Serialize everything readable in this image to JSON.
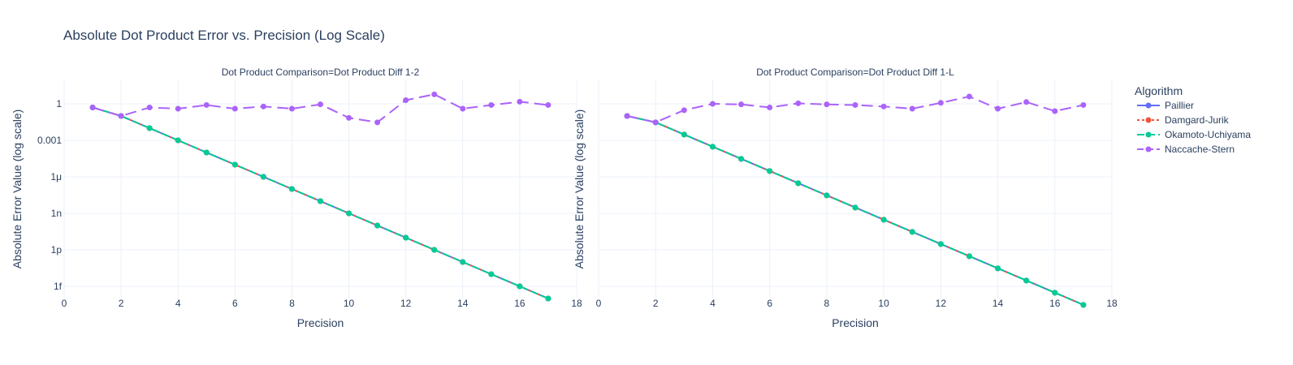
{
  "chart_data": {
    "type": "line",
    "title": "Absolute Dot Product Error vs. Precision (Log Scale)",
    "legend": {
      "title": "Algorithm",
      "placement": "right",
      "entries": [
        "Paillier",
        "Damgard-Jurik",
        "Okamoto-Uchiyama",
        "Naccache-Stern"
      ]
    },
    "colors": {
      "Paillier": "#636efa",
      "Damgard-Jurik": "#ef553b",
      "Okamoto-Uchiyama": "#00cc96",
      "Naccache-Stern": "#ab63fa"
    },
    "grid": true,
    "y_scale": "log",
    "xlim": [
      0,
      18
    ],
    "ylim": [
      1e-16,
      100.0
    ],
    "x_ticks": [
      0,
      2,
      4,
      6,
      8,
      10,
      12,
      14,
      16,
      18
    ],
    "y_ticks": [
      {
        "value": 1,
        "label": "1"
      },
      {
        "value": 0.001,
        "label": "0.001"
      },
      {
        "value": 1e-06,
        "label": "1μ"
      },
      {
        "value": 1e-09,
        "label": "1n"
      },
      {
        "value": 1e-12,
        "label": "1p"
      },
      {
        "value": 1e-15,
        "label": "1f"
      }
    ],
    "xlabel": "Precision",
    "ylabel": "Absolute Error Value (log scale)",
    "panels": [
      {
        "subtitle": "Dot Product Comparison=Dot Product Diff 1-2",
        "show_y_ticks": true,
        "series": [
          {
            "name": "Paillier",
            "x": [
              1,
              2,
              3,
              4,
              5,
              6,
              7,
              8,
              9,
              10,
              11,
              12,
              13,
              14,
              15,
              16,
              17
            ],
            "y": [
              0.5,
              0.1,
              0.01,
              0.001,
              0.0001,
              1e-05,
              1e-06,
              1e-07,
              1e-08,
              1e-09,
              1e-10,
              1e-11,
              1e-12,
              1e-13,
              1e-14,
              1e-15,
              1e-16
            ]
          },
          {
            "name": "Damgard-Jurik",
            "x": [
              1,
              2,
              3,
              4,
              5,
              6,
              7,
              8,
              9,
              10,
              11,
              12,
              13,
              14,
              15,
              16,
              17
            ],
            "y": [
              0.5,
              0.1,
              0.01,
              0.001,
              0.0001,
              1e-05,
              1e-06,
              1e-07,
              1e-08,
              1e-09,
              1e-10,
              1e-11,
              1e-12,
              1e-13,
              1e-14,
              1e-15,
              1e-16
            ]
          },
          {
            "name": "Okamoto-Uchiyama",
            "x": [
              1,
              2,
              3,
              4,
              5,
              6,
              7,
              8,
              9,
              10,
              11,
              12,
              13,
              14,
              15,
              16,
              17
            ],
            "y": [
              0.5,
              0.1,
              0.01,
              0.001,
              0.0001,
              1e-05,
              1e-06,
              1e-07,
              1e-08,
              1e-09,
              1e-10,
              1e-11,
              1e-12,
              1e-13,
              1e-14,
              1e-15,
              1e-16
            ]
          },
          {
            "name": "Naccache-Stern",
            "x": [
              1,
              2,
              3,
              4,
              5,
              6,
              7,
              8,
              9,
              10,
              11,
              12,
              13,
              14,
              15,
              16,
              17
            ],
            "y": [
              0.5,
              0.1,
              0.5,
              0.4,
              0.8,
              0.4,
              0.6,
              0.4,
              0.9,
              0.07,
              0.03,
              2,
              6,
              0.4,
              0.8,
              1.5,
              0.8
            ]
          }
        ]
      },
      {
        "subtitle": "Dot Product Comparison=Dot Product Diff 1-L",
        "show_y_ticks": false,
        "series": [
          {
            "name": "Paillier",
            "x": [
              1,
              2,
              3,
              4,
              5,
              6,
              7,
              8,
              9,
              10,
              11,
              12,
              13,
              14,
              15,
              16,
              17
            ],
            "y": [
              0.1,
              0.03,
              0.003,
              0.0003,
              3e-05,
              3e-06,
              3e-07,
              3e-08,
              3e-09,
              3e-10,
              3e-11,
              3e-12,
              3e-13,
              3e-14,
              3e-15,
              3e-16,
              3e-17
            ]
          },
          {
            "name": "Damgard-Jurik",
            "x": [
              1,
              2,
              3,
              4,
              5,
              6,
              7,
              8,
              9,
              10,
              11,
              12,
              13,
              14,
              15,
              16,
              17
            ],
            "y": [
              0.1,
              0.03,
              0.003,
              0.0003,
              3e-05,
              3e-06,
              3e-07,
              3e-08,
              3e-09,
              3e-10,
              3e-11,
              3e-12,
              3e-13,
              3e-14,
              3e-15,
              3e-16,
              3e-17
            ]
          },
          {
            "name": "Okamoto-Uchiyama",
            "x": [
              1,
              2,
              3,
              4,
              5,
              6,
              7,
              8,
              9,
              10,
              11,
              12,
              13,
              14,
              15,
              16,
              17
            ],
            "y": [
              0.1,
              0.03,
              0.003,
              0.0003,
              3e-05,
              3e-06,
              3e-07,
              3e-08,
              3e-09,
              3e-10,
              3e-11,
              3e-12,
              3e-13,
              3e-14,
              3e-15,
              3e-16,
              3e-17
            ]
          },
          {
            "name": "Naccache-Stern",
            "x": [
              1,
              2,
              3,
              4,
              5,
              6,
              7,
              8,
              9,
              10,
              11,
              12,
              13,
              14,
              15,
              16,
              17
            ],
            "y": [
              0.1,
              0.03,
              0.3,
              1,
              0.9,
              0.5,
              1.1,
              0.9,
              0.8,
              0.6,
              0.4,
              1.2,
              4,
              0.4,
              1.4,
              0.25,
              0.8
            ]
          }
        ]
      }
    ]
  }
}
